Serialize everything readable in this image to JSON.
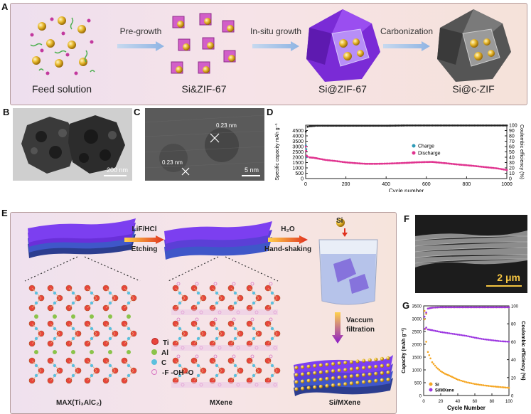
{
  "panel_labels": {
    "a": "A",
    "b": "B",
    "c": "C",
    "d": "D",
    "e": "E",
    "f": "F",
    "g": "G"
  },
  "panelA": {
    "stages": [
      "Feed solution",
      "Si&ZIF-67",
      "Si@ZIF-67",
      "Si@c-ZIF"
    ],
    "steps": [
      "Pre-growth",
      "In-situ growth",
      "Carbonization"
    ]
  },
  "panelB": {
    "scale": "200 nm"
  },
  "panelC": {
    "scale": "5 nm",
    "lattice1": "0.23 nm",
    "lattice2": "0.23 nm"
  },
  "panelE": {
    "max_label": "MAX(Ti₃AlC₂)",
    "mxene_label": "MXene",
    "final_label": "Si/MXene",
    "etch_top": "LiF/HCl",
    "etch_bottom": "Etching",
    "shake_top": "H₂O",
    "shake_bottom": "Hand-shaking",
    "si_label": "Si",
    "vac_top": "Vaccum",
    "vac_bottom": "filtration",
    "legend": [
      "Ti",
      "Al",
      "C",
      "-F -OH -O"
    ]
  },
  "panelF": {
    "scale": "2 μm"
  },
  "colors": {
    "ti": "#e8453c",
    "al": "#8bc34a",
    "c": "#5bc0de",
    "term": "#d977c4",
    "purple": "#6a1fd1",
    "gold": "#e8b92e"
  },
  "chart_data": [
    {
      "id": "D",
      "type": "scatter",
      "xlabel": "Cycle number",
      "ylabel": "Specific capacity mAh g⁻¹",
      "y2label": "Coulombic efficiency (%)",
      "xlim": [
        0,
        1000
      ],
      "ylim": [
        0,
        5000
      ],
      "y2lim": [
        0,
        100
      ],
      "xticks": [
        0,
        200,
        400,
        600,
        800,
        1000
      ],
      "yticks": [
        0,
        500,
        1000,
        1500,
        2000,
        2500,
        3000,
        3500,
        4000,
        4500
      ],
      "y2ticks": [
        0,
        10,
        20,
        30,
        40,
        50,
        60,
        70,
        80,
        90,
        100
      ],
      "series": [
        {
          "name": "Charge",
          "axis": "left",
          "color": "#2e9bb8",
          "x": [
            1,
            3,
            5
          ],
          "y": [
            3100,
            2750,
            2000
          ]
        },
        {
          "name": "Discharge",
          "axis": "left",
          "color": "#e0338f",
          "x": [
            1,
            2,
            5,
            10,
            20,
            40,
            60,
            100,
            150,
            200,
            250,
            300,
            350,
            400,
            450,
            500,
            550,
            600,
            630,
            650,
            700,
            750,
            800,
            850,
            900,
            950,
            1000
          ],
          "y": [
            3000,
            2600,
            2150,
            2050,
            1980,
            1950,
            1880,
            1740,
            1640,
            1520,
            1440,
            1380,
            1380,
            1400,
            1430,
            1470,
            1520,
            1550,
            1560,
            1520,
            1430,
            1330,
            1250,
            1160,
            1060,
            960,
            800
          ]
        },
        {
          "name": "Coulombic efficiency",
          "axis": "right",
          "color": "#222",
          "x": [
            1,
            10,
            20,
            50,
            100,
            200,
            300,
            400,
            500,
            600,
            700,
            800,
            900,
            1000
          ],
          "y": [
            88,
            97,
            98,
            99,
            99,
            99,
            99,
            99,
            99.5,
            99.5,
            99.5,
            99.5,
            99.5,
            99.5
          ]
        }
      ]
    },
    {
      "id": "G",
      "type": "scatter",
      "xlabel": "Cycle Number",
      "ylabel": "Capacity (mAh g⁻¹)",
      "y2label": "Coulombic efficiency (%)",
      "xlim": [
        0,
        100
      ],
      "ylim": [
        0,
        3500
      ],
      "y2lim": [
        0,
        100
      ],
      "xticks": [
        0,
        20,
        40,
        60,
        80,
        100
      ],
      "yticks": [
        0,
        500,
        1000,
        1500,
        2000,
        2500,
        3000,
        3500
      ],
      "y2ticks": [
        0,
        20,
        40,
        60,
        80,
        100
      ],
      "series": [
        {
          "name": "Si",
          "axis": "left",
          "color": "#f5a623",
          "x": [
            1,
            2,
            3,
            5,
            8,
            10,
            15,
            20,
            25,
            30,
            35,
            40,
            50,
            60,
            70,
            80,
            90,
            100
          ],
          "y": [
            3300,
            2600,
            2100,
            1700,
            1450,
            1300,
            1100,
            950,
            850,
            780,
            700,
            620,
            520,
            450,
            400,
            360,
            330,
            300
          ]
        },
        {
          "name": "Si/MXene",
          "axis": "left",
          "color": "#9b35e0",
          "x": [
            1,
            3,
            5,
            10,
            20,
            30,
            40,
            50,
            60,
            70,
            80,
            90,
            100
          ],
          "y": [
            2600,
            2650,
            2580,
            2550,
            2480,
            2430,
            2380,
            2330,
            2260,
            2200,
            2160,
            2120,
            2100
          ]
        },
        {
          "name": "Si CE",
          "axis": "right",
          "color": "#f5a623",
          "x": [
            1,
            5,
            10,
            20,
            40,
            60,
            80,
            100
          ],
          "y": [
            85,
            97,
            98,
            98.5,
            98.5,
            98.5,
            98.5,
            98.5
          ]
        },
        {
          "name": "Si/MXene CE",
          "axis": "right",
          "color": "#9b35e0",
          "x": [
            1,
            5,
            10,
            20,
            40,
            60,
            80,
            100
          ],
          "y": [
            88,
            97,
            98,
            98.5,
            98.5,
            98.5,
            98.5,
            98.5
          ]
        }
      ]
    }
  ]
}
